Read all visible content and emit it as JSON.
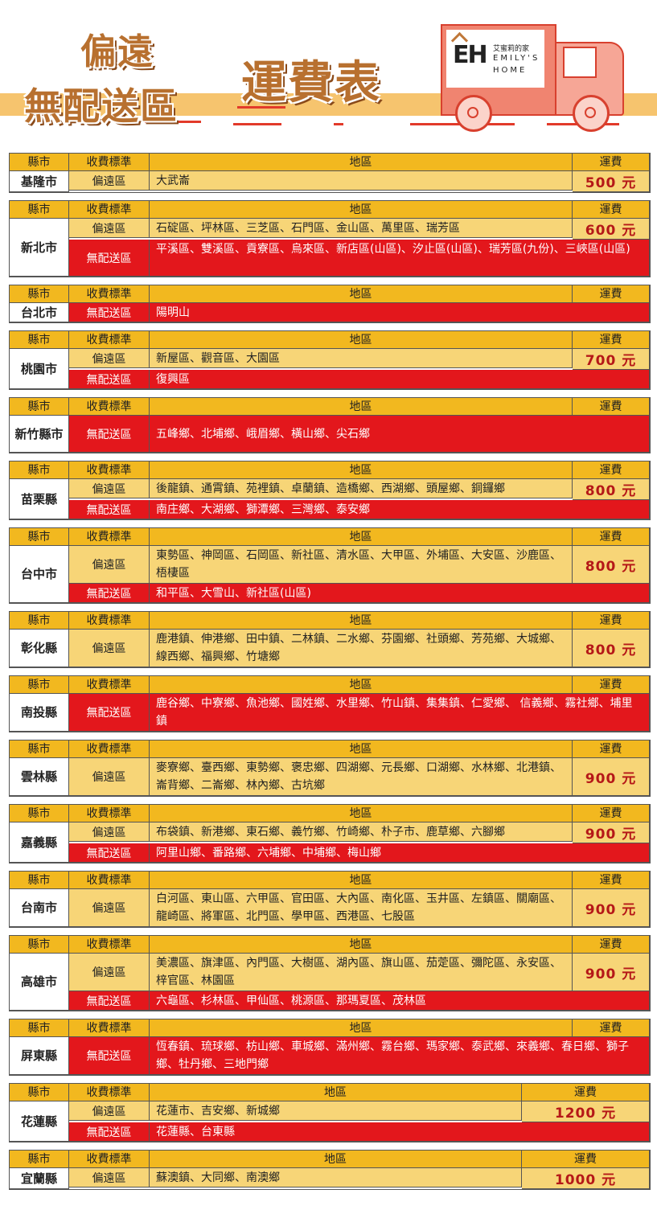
{
  "banner": {
    "title_line1": "偏遠",
    "title_line2": "無配送區",
    "title_main": "運費表",
    "logo": {
      "mark": "EH",
      "chinese": "艾蜜莉的家",
      "english_line1": "EMILY'S",
      "english_line2": "HOME"
    }
  },
  "headers": {
    "county": "縣市",
    "standard": "收費標準",
    "area": "地區",
    "fee": "運費"
  },
  "colors": {
    "header": "#f2b81f",
    "remote_row": "#f7d577",
    "no_delivery_row": "#e3171c",
    "fee_text": "#b51818"
  },
  "tables": [
    {
      "county": "基隆市",
      "rows": [
        {
          "kind": "remote",
          "standard": "偏遠區",
          "areas": "大武崙",
          "fee": "500 元"
        }
      ]
    },
    {
      "county": "新北市",
      "rows": [
        {
          "kind": "remote",
          "standard": "偏遠區",
          "areas": "石碇區、坪林區、三芝區、石門區、金山區、萬里區、瑞芳區",
          "fee": "600 元"
        },
        {
          "kind": "none",
          "standard": "無配送區",
          "areas": "平溪區、雙溪區、貢寮區、烏來區、新店區(山區)、汐止區(山區)、瑞芳區(九份)、三峽區(山區)"
        }
      ]
    },
    {
      "county": "台北市",
      "rows": [
        {
          "kind": "none",
          "standard": "無配送區",
          "areas": "陽明山"
        }
      ]
    },
    {
      "county": "桃園市",
      "rows": [
        {
          "kind": "remote",
          "standard": "偏遠區",
          "areas": "新屋區、觀音區、大園區",
          "fee": "700 元"
        },
        {
          "kind": "none",
          "standard": "無配送區",
          "areas": "復興區"
        }
      ]
    },
    {
      "county": "新竹縣市",
      "rows": [
        {
          "kind": "none",
          "standard": "無配送區",
          "areas": "五峰鄉、北埔鄉、峨眉鄉、橫山鄉、尖石鄉",
          "tall": true
        }
      ]
    },
    {
      "county": "苗栗縣",
      "rows": [
        {
          "kind": "remote",
          "standard": "偏遠區",
          "areas": "後龍鎮、通霄鎮、苑裡鎮、卓蘭鎮、造橋鄉、西湖鄉、頭屋鄉、銅鑼鄉",
          "fee": "800 元"
        },
        {
          "kind": "none",
          "standard": "無配送區",
          "areas": "南庄鄉、大湖鄉、獅潭鄉、三灣鄉、泰安鄉"
        }
      ]
    },
    {
      "county": "台中市",
      "rows": [
        {
          "kind": "remote",
          "standard": "偏遠區",
          "areas": "東勢區、神岡區、石岡區、新社區、清水區、大甲區、外埔區、大安區、沙鹿區、梧棲區",
          "fee": "800 元"
        },
        {
          "kind": "none",
          "standard": "無配送區",
          "areas": "和平區、大雪山、新社區(山區)"
        }
      ]
    },
    {
      "county": "彰化縣",
      "rows": [
        {
          "kind": "remote",
          "standard": "偏遠區",
          "areas": "鹿港鎮、伸港鄉、田中鎮、二林鎮、二水鄉、芬園鄉、社頭鄉、芳苑鄉、大城鄉、線西鄉、福興鄉、竹塘鄉",
          "fee": "800 元"
        }
      ]
    },
    {
      "county": "南投縣",
      "rows": [
        {
          "kind": "none",
          "standard": "無配送區",
          "areas": "鹿谷鄉、中寮鄉、魚池鄉、國姓鄉、水里鄉、竹山鎮、集集鎮、仁愛鄉、 信義鄉、霧社鄉、埔里鎮"
        }
      ]
    },
    {
      "county": "雲林縣",
      "rows": [
        {
          "kind": "remote",
          "standard": "偏遠區",
          "areas": "麥寮鄉、臺西鄉、東勢鄉、褒忠鄉、四湖鄉、元長鄉、口湖鄉、水林鄉、北港鎮、崙背鄉、二崙鄉、林內鄉、古坑鄉",
          "fee": "900 元"
        }
      ]
    },
    {
      "county": "嘉義縣",
      "rows": [
        {
          "kind": "remote",
          "standard": "偏遠區",
          "areas": "布袋鎮、新港鄉、東石鄉、義竹鄉、竹崎鄉、朴子市、鹿草鄉、六腳鄉",
          "fee": "900 元"
        },
        {
          "kind": "none",
          "standard": "無配送區",
          "areas": "阿里山鄉、番路鄉、六埔鄉、中埔鄉、梅山鄉"
        }
      ]
    },
    {
      "county": "台南市",
      "rows": [
        {
          "kind": "remote",
          "standard": "偏遠區",
          "areas": "白河區、東山區、六甲區、官田區、大內區、南化區、玉井區、左鎮區、關廟區、龍崎區、將軍區、北門區、學甲區、西港區、七股區",
          "fee": "900 元"
        }
      ]
    },
    {
      "county": "高雄市",
      "rows": [
        {
          "kind": "remote",
          "standard": "偏遠區",
          "areas": "美濃區、旗津區、內門區、大樹區、湖內區、旗山區、茄萣區、彌陀區、永安區、梓官區、林園區",
          "fee": "900 元"
        },
        {
          "kind": "none",
          "standard": "無配送區",
          "areas": "六龜區、杉林區、甲仙區、桃源區、那瑪夏區、茂林區"
        }
      ]
    },
    {
      "county": "屏東縣",
      "rows": [
        {
          "kind": "none",
          "standard": "無配送區",
          "areas": "恆春鎮、琉球鄉、枋山鄉、車城鄉、滿州鄉、霧台鄉、瑪家鄉、泰武鄉、來義鄉、春日鄉、獅子鄉、牡丹鄉、三地門鄉"
        }
      ]
    },
    {
      "county": "花蓮縣",
      "narrow": true,
      "rows": [
        {
          "kind": "remote",
          "standard": "偏遠區",
          "areas": "花蓮市、吉安鄉、新城鄉",
          "fee": "1200 元"
        },
        {
          "kind": "none",
          "standard": "無配送區",
          "areas": "花蓮縣、台東縣"
        }
      ]
    },
    {
      "county": "宜蘭縣",
      "narrow": true,
      "rows": [
        {
          "kind": "remote",
          "standard": "偏遠區",
          "areas": "蘇澳鎮、大同鄉、南澳鄉",
          "fee": "1000 元"
        }
      ]
    }
  ]
}
